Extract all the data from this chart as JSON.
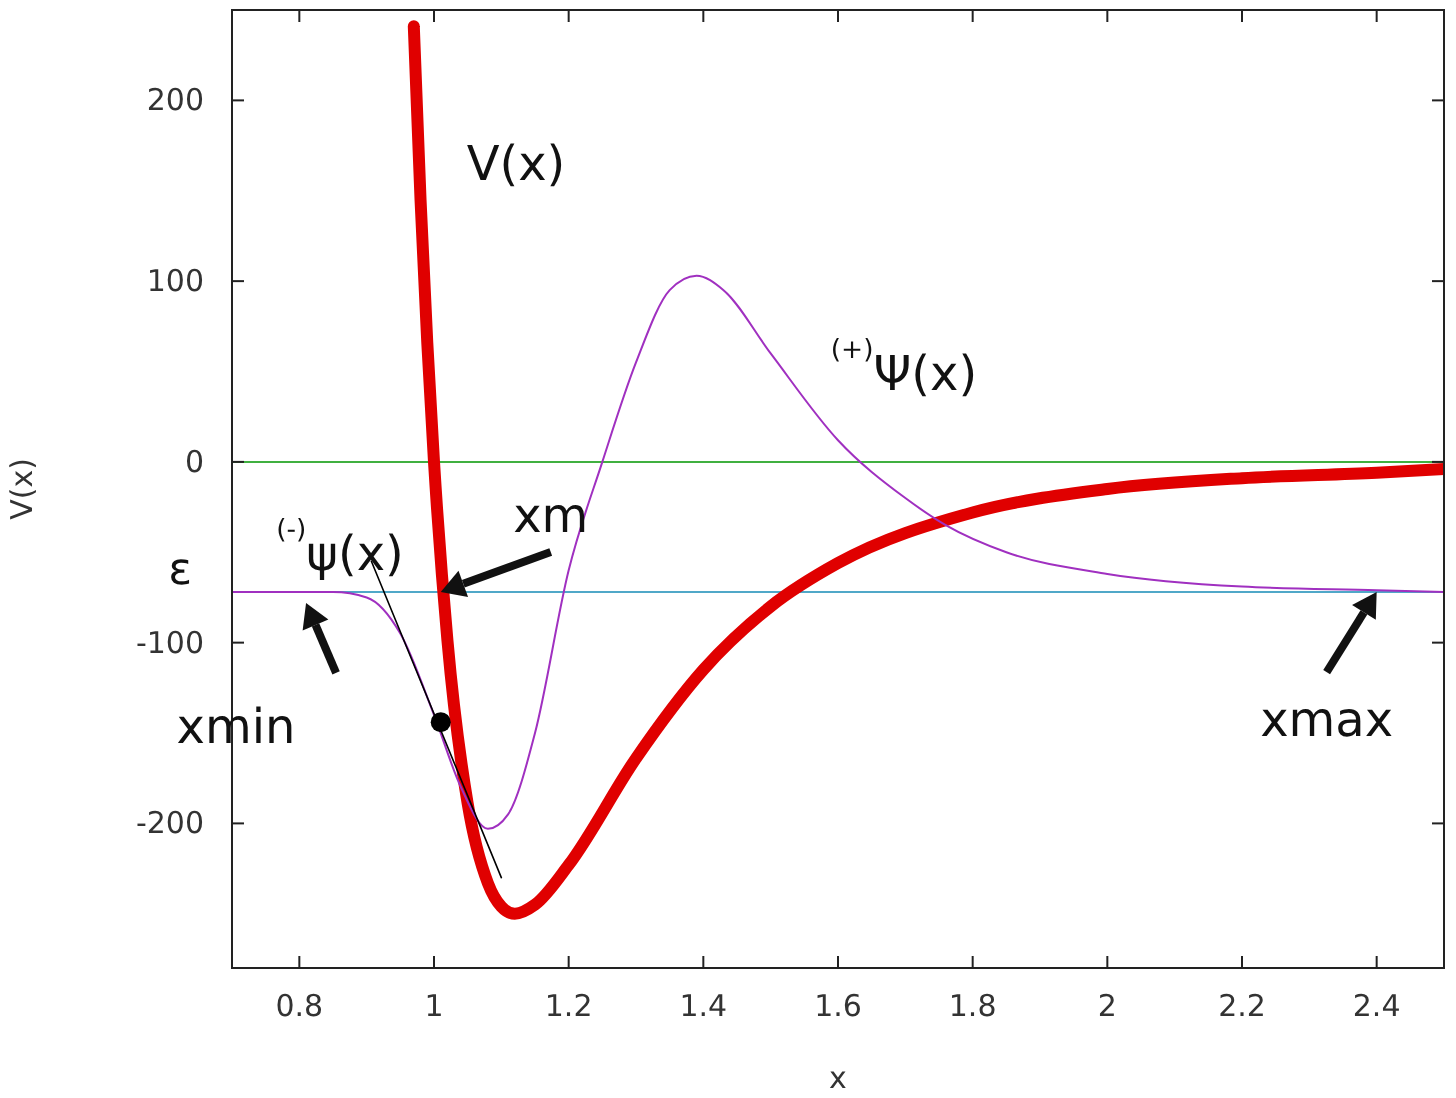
{
  "chart_data": {
    "type": "line",
    "xlabel": "x",
    "ylabel": "V(x)",
    "xlim": [
      0.7,
      2.5
    ],
    "xticks": [
      0.8,
      1,
      1.2,
      1.4,
      1.6,
      1.8,
      2,
      2.2,
      2.4
    ],
    "ylim": [
      -280,
      250
    ],
    "yticks": [
      -200,
      -100,
      0,
      100,
      200
    ],
    "grid": false,
    "line_style": "solid",
    "series": [
      {
        "color": "#e00000",
        "x": [
          0.97,
          0.98,
          0.99,
          1.0,
          1.02,
          1.05,
          1.08,
          1.1,
          1.12,
          1.15,
          1.2,
          1.3,
          1.4,
          1.5,
          1.6,
          1.8,
          2.0,
          2.2,
          2.4,
          2.5
        ],
        "values": [
          241,
          145,
          66,
          0,
          -99,
          -189,
          -233,
          -246,
          -250,
          -245,
          -223,
          -164,
          -115,
          -80,
          -56,
          -28,
          -15,
          -9,
          -6,
          -4
        ]
      },
      {
        "color": "#a030c0",
        "x": [
          0.7,
          0.85,
          0.9,
          0.95,
          1.0,
          1.04,
          1.08,
          1.11,
          1.15,
          1.2,
          1.25,
          1.3,
          1.35,
          1.39,
          1.43,
          1.5,
          1.6,
          1.7,
          1.76,
          1.85,
          2.0,
          2.2,
          2.4,
          2.5
        ],
        "values": [
          -72,
          -72,
          -75,
          -95,
          -140,
          -180,
          -203,
          -195,
          -150,
          -60,
          0,
          55,
          95,
          103,
          95,
          60,
          12,
          -20,
          -35,
          -50,
          -62,
          -69,
          -71,
          -72
        ]
      },
      {
        "color": "#000000",
        "x": [
          0.907,
          1.1
        ],
        "values": [
          -55,
          -230
        ]
      },
      {
        "type": "scatter",
        "color": "#000000",
        "marker": "circle",
        "x": [
          1.01
        ],
        "values": [
          -144
        ]
      }
    ],
    "ref_lines": [
      {
        "axis": "y",
        "value": 0,
        "color": "#40b040"
      },
      {
        "axis": "y",
        "value": -72,
        "label": "ε",
        "color": "#50a8c8"
      }
    ],
    "annotations": [
      "V(x)",
      "$^{(+)}$Ψ(x)",
      "$^{(-)}$ψ(x)",
      {
        "text": "xm",
        "x": 1.01,
        "y": -72
      },
      {
        "text": "xmin",
        "x": 0.81,
        "y": -78
      },
      {
        "text": "xmax",
        "x": 2.4,
        "y": -72
      }
    ]
  }
}
